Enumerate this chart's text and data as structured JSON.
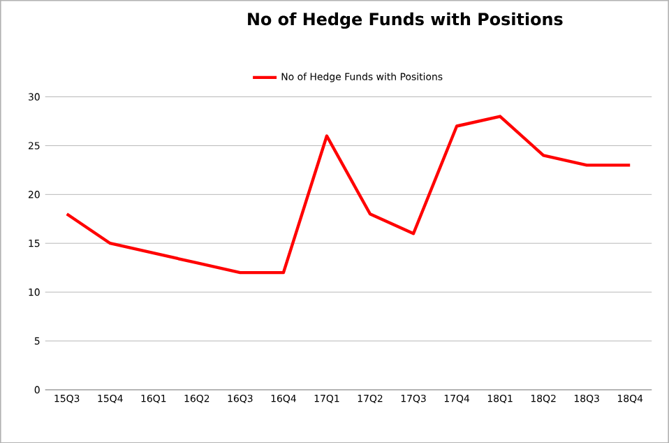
{
  "chart_data": {
    "type": "line",
    "title": "No of Hedge Funds with Positions",
    "categories": [
      "15Q3",
      "15Q4",
      "16Q1",
      "16Q2",
      "16Q3",
      "16Q4",
      "17Q1",
      "17Q2",
      "17Q3",
      "17Q4",
      "18Q1",
      "18Q2",
      "18Q3",
      "18Q4"
    ],
    "series": [
      {
        "name": "No of Hedge Funds with Positions",
        "color": "#ff0000",
        "values": [
          18,
          15,
          14,
          13,
          12,
          12,
          26,
          18,
          16,
          27,
          28,
          24,
          23,
          23
        ]
      }
    ],
    "ylim": [
      0,
      30
    ],
    "yticks": [
      0,
      5,
      10,
      15,
      20,
      25,
      30
    ],
    "grid": "y",
    "legend": "top",
    "marker": "none",
    "line_style": "solid"
  }
}
